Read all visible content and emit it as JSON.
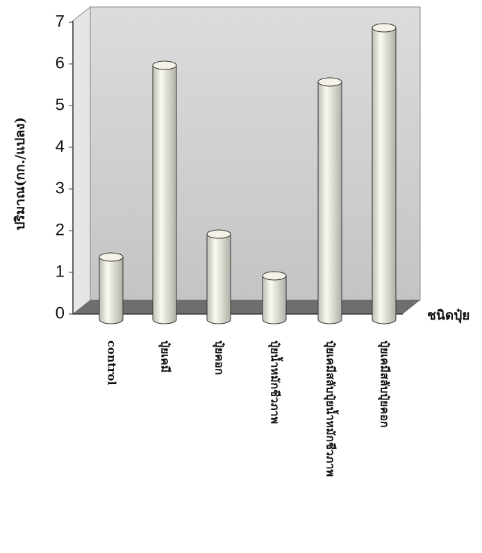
{
  "chart_data": {
    "type": "cylinder-bar",
    "y_label": "ปริมาณ(กก./แปลง)",
    "x_label": "ชนิดปุ๋ย",
    "categories": [
      "control",
      "ปุ๋ยเคมี",
      "ปุ๋ยคอก",
      "ปุ๋ยน้ำหมักชีวภาพ",
      "ปุ๋ยเคมีสลับปุ๋ยน้ำหมักชีวภาพ",
      "ปุ๋ยเคมีสลับปุ๋ยคอก"
    ],
    "values": [
      1.5,
      6.1,
      2.05,
      1.05,
      5.7,
      7.0
    ],
    "color": "#f4f2e6",
    "ylim": [
      0,
      7
    ],
    "yticks": [
      0,
      1,
      2,
      3,
      4,
      5,
      6,
      7
    ],
    "grid": false
  }
}
